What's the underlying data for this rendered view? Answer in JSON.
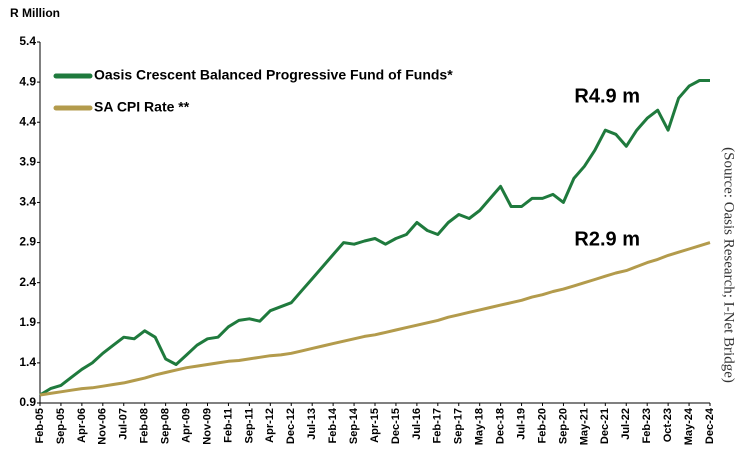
{
  "chart_data": {
    "type": "line",
    "y_axis_title": "R Million",
    "source": "(Source: Oasis Research; I-Net Bridge)",
    "annotations": [
      "R4.9 m",
      "R2.9 m"
    ],
    "categories": [
      "Feb-05",
      null,
      "Sep-05",
      null,
      "Apr-06",
      null,
      "Nov-06",
      null,
      "Jul-07",
      null,
      "Feb-08",
      null,
      "Sep-08",
      null,
      "Apr-09",
      null,
      "Nov-09",
      null,
      "Feb-11",
      null,
      "Sep-11",
      null,
      "Apr-12",
      null,
      "Dec-12",
      null,
      "Jul-13",
      null,
      "Feb-14",
      null,
      "Sep-14",
      null,
      "Apr-15",
      null,
      "Dec-15",
      null,
      "Jul-16",
      null,
      "Feb-17",
      null,
      "Sep-17",
      null,
      "May-18",
      null,
      "Dec-18",
      null,
      "Jul-19",
      null,
      "Feb-20",
      null,
      "Sep-20",
      null,
      "May-21",
      null,
      "Dec-21",
      null,
      "Jul-22",
      null,
      "Feb-23",
      null,
      "Oct-23",
      null,
      "May-24",
      null,
      "Dec-24"
    ],
    "series": [
      {
        "name": "Oasis Crescent Balanced Progressive Fund of Funds*",
        "color": "#1f7a3d",
        "values": [
          1.0,
          1.08,
          1.12,
          1.22,
          1.32,
          1.4,
          1.52,
          1.62,
          1.72,
          1.7,
          1.8,
          1.72,
          1.45,
          1.38,
          1.5,
          1.62,
          1.7,
          1.72,
          1.85,
          1.93,
          1.95,
          1.92,
          2.05,
          2.1,
          2.15,
          2.3,
          2.45,
          2.6,
          2.75,
          2.9,
          2.88,
          2.92,
          2.95,
          2.88,
          2.95,
          3.0,
          3.15,
          3.05,
          3.0,
          3.15,
          3.25,
          3.2,
          3.3,
          3.45,
          3.6,
          3.35,
          3.35,
          3.45,
          3.45,
          3.5,
          3.4,
          3.7,
          3.85,
          4.05,
          4.3,
          4.25,
          4.1,
          4.3,
          4.45,
          4.55,
          4.3,
          4.7,
          4.85,
          4.92,
          4.92
        ]
      },
      {
        "name": "SA CPI Rate **",
        "color": "#b39b4c",
        "values": [
          1.0,
          1.02,
          1.04,
          1.06,
          1.08,
          1.09,
          1.11,
          1.13,
          1.15,
          1.18,
          1.21,
          1.25,
          1.28,
          1.31,
          1.34,
          1.36,
          1.38,
          1.4,
          1.42,
          1.43,
          1.45,
          1.47,
          1.49,
          1.5,
          1.52,
          1.55,
          1.58,
          1.61,
          1.64,
          1.67,
          1.7,
          1.73,
          1.75,
          1.78,
          1.81,
          1.84,
          1.87,
          1.9,
          1.93,
          1.97,
          2.0,
          2.03,
          2.06,
          2.09,
          2.12,
          2.15,
          2.18,
          2.22,
          2.25,
          2.29,
          2.32,
          2.36,
          2.4,
          2.44,
          2.48,
          2.52,
          2.55,
          2.6,
          2.65,
          2.69,
          2.74,
          2.78,
          2.82,
          2.86,
          2.9
        ]
      }
    ],
    "ylim": [
      0.9,
      5.4
    ],
    "yticks": [
      0.9,
      1.4,
      1.9,
      2.4,
      2.9,
      3.4,
      3.9,
      4.4,
      4.9,
      5.4
    ],
    "grid": false,
    "legend": "upper left"
  }
}
